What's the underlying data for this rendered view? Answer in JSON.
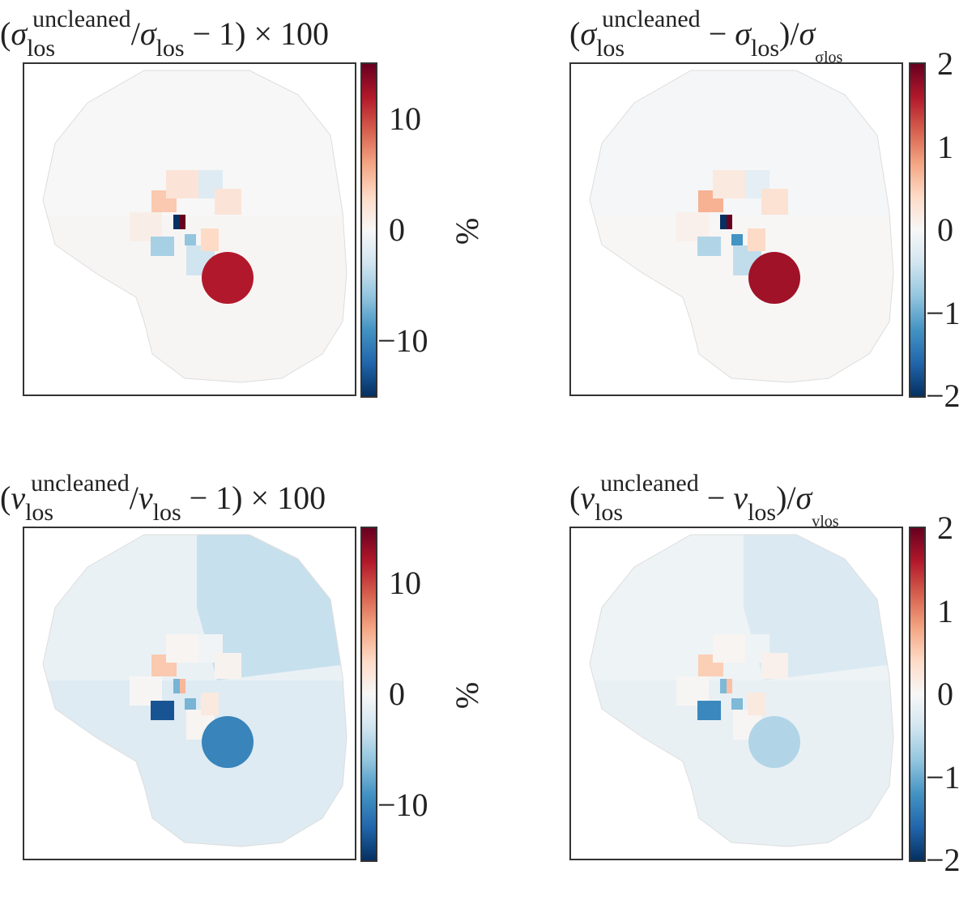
{
  "chart_data": [
    {
      "type": "heatmap",
      "title": [
        {
          "t": "(",
          "c": ""
        },
        {
          "t": "σ",
          "c": "it"
        },
        {
          "t": "los",
          "c": "sub"
        },
        {
          "t": "uncleaned",
          "c": "sup"
        },
        {
          "t": "/",
          "c": ""
        },
        {
          "t": "σ",
          "c": "it"
        },
        {
          "t": "los",
          "c": "sub"
        },
        {
          "t": " − 1) × 100",
          "c": ""
        }
      ],
      "colorbar": {
        "cmap": "RdBu_r",
        "vmin": -15,
        "vmax": 15,
        "ticks": [
          {
            "v": 10,
            "label": "10"
          },
          {
            "v": 0,
            "label": "0"
          },
          {
            "v": -10,
            "label": "−10"
          }
        ],
        "label": "%"
      },
      "background": [
        0,
        0.2
      ],
      "regions": [
        4,
        2,
        -2,
        2,
        1,
        -5,
        -6,
        -3,
        3,
        -15,
        15,
        12
      ]
    },
    {
      "type": "heatmap",
      "title": [
        {
          "t": "(",
          "c": ""
        },
        {
          "t": "σ",
          "c": "it"
        },
        {
          "t": "los",
          "c": "sub"
        },
        {
          "t": "uncleaned",
          "c": "sup"
        },
        {
          "t": " − ",
          "c": ""
        },
        {
          "t": "σ",
          "c": "it"
        },
        {
          "t": "los",
          "c": "sub"
        },
        {
          "t": ")/",
          "c": ""
        },
        {
          "t": "σ",
          "c": "it"
        },
        {
          "t": "σlos",
          "c": "sub2"
        }
      ],
      "colorbar": {
        "cmap": "RdBu_r",
        "vmin": -2,
        "vmax": 2,
        "ticks": [
          {
            "v": 2,
            "label": "2"
          },
          {
            "v": 1,
            "label": "1"
          },
          {
            "v": 0,
            "label": "0"
          },
          {
            "v": -1,
            "label": "−1"
          },
          {
            "v": -2,
            "label": "−2"
          }
        ],
        "label": ""
      },
      "background": [
        -0.02,
        0.02
      ],
      "regions": [
        0.7,
        0.2,
        -0.2,
        0.3,
        0.1,
        -0.6,
        -1.2,
        -0.5,
        0.4,
        -2,
        2,
        1.7
      ]
    },
    {
      "type": "heatmap",
      "title": [
        {
          "t": "(",
          "c": ""
        },
        {
          "t": "v",
          "c": "it"
        },
        {
          "t": "los",
          "c": "sub"
        },
        {
          "t": "uncleaned",
          "c": "sup"
        },
        {
          "t": "/",
          "c": ""
        },
        {
          "t": "v",
          "c": "it"
        },
        {
          "t": "los",
          "c": "sub"
        },
        {
          "t": " − 1) × 100",
          "c": ""
        }
      ],
      "colorbar": {
        "cmap": "RdBu_r",
        "vmin": -15,
        "vmax": 15,
        "ticks": [
          {
            "v": 10,
            "label": "10"
          },
          {
            "v": 0,
            "label": "0"
          },
          {
            "v": -10,
            "label": "−10"
          }
        ],
        "label": "%"
      },
      "background": [
        -1,
        -2
      ],
      "regions": [
        4,
        0.3,
        -0.5,
        0.5,
        0.2,
        -13,
        -7,
        0.3,
        1.5,
        -7,
        5,
        -10
      ]
    },
    {
      "type": "heatmap",
      "title": [
        {
          "t": "(",
          "c": ""
        },
        {
          "t": "v",
          "c": "it"
        },
        {
          "t": "los",
          "c": "sub"
        },
        {
          "t": "uncleaned",
          "c": "sup"
        },
        {
          "t": " − ",
          "c": ""
        },
        {
          "t": "v",
          "c": "it"
        },
        {
          "t": "los",
          "c": "sub"
        },
        {
          "t": ")/",
          "c": ""
        },
        {
          "t": "σ",
          "c": "it"
        },
        {
          "t": "vlos",
          "c": "sub2"
        }
      ],
      "colorbar": {
        "cmap": "RdBu_r",
        "vmin": -2,
        "vmax": 2,
        "ticks": [
          {
            "v": 2,
            "label": "2"
          },
          {
            "v": 1,
            "label": "1"
          },
          {
            "v": 0,
            "label": "0"
          },
          {
            "v": -1,
            "label": "−1"
          },
          {
            "v": -2,
            "label": "−2"
          }
        ],
        "label": ""
      },
      "background": [
        -0.1,
        -0.15
      ],
      "regions": [
        0.5,
        0.05,
        -0.1,
        0.1,
        0.03,
        -1.3,
        -0.9,
        0.03,
        0.2,
        -0.9,
        0.6,
        -0.6
      ]
    }
  ]
}
